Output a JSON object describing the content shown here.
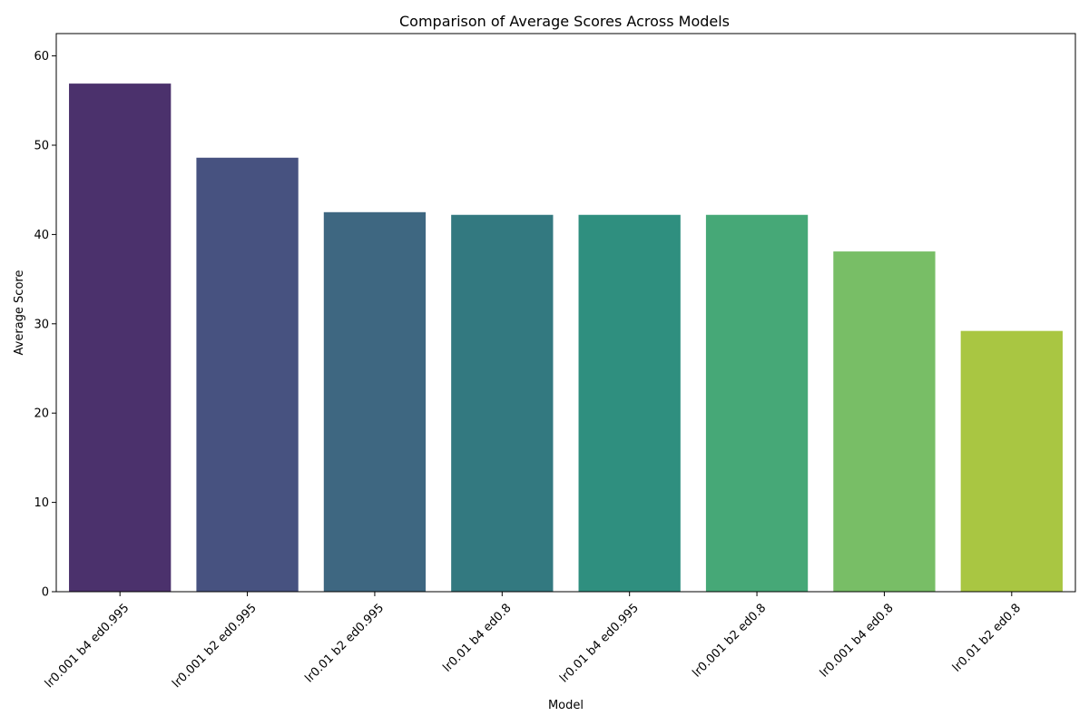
{
  "chart_data": {
    "type": "bar",
    "title": "Comparison of Average Scores Across Models",
    "xlabel": "Model",
    "ylabel": "Average Score",
    "categories": [
      "lr0.001 b4 ed0.995",
      "lr0.001 b2 ed0.995",
      "lr0.01 b2 ed0.995",
      "lr0.01 b4 ed0.8",
      "lr0.01 b4 ed0.995",
      "lr0.001 b2 ed0.8",
      "lr0.001 b4 ed0.8",
      "lr0.01 b2 ed0.8"
    ],
    "values": [
      56.9,
      48.6,
      42.5,
      42.2,
      42.2,
      42.2,
      38.1,
      29.2
    ],
    "colors": [
      "#4b316c",
      "#475280",
      "#3e6781",
      "#337980",
      "#2f8f7f",
      "#46a877",
      "#78be66",
      "#a9c642"
    ],
    "ylim": [
      0,
      62.5
    ],
    "yticks": [
      0,
      10,
      20,
      30,
      40,
      50,
      60
    ],
    "grid": false,
    "legend": "none"
  }
}
